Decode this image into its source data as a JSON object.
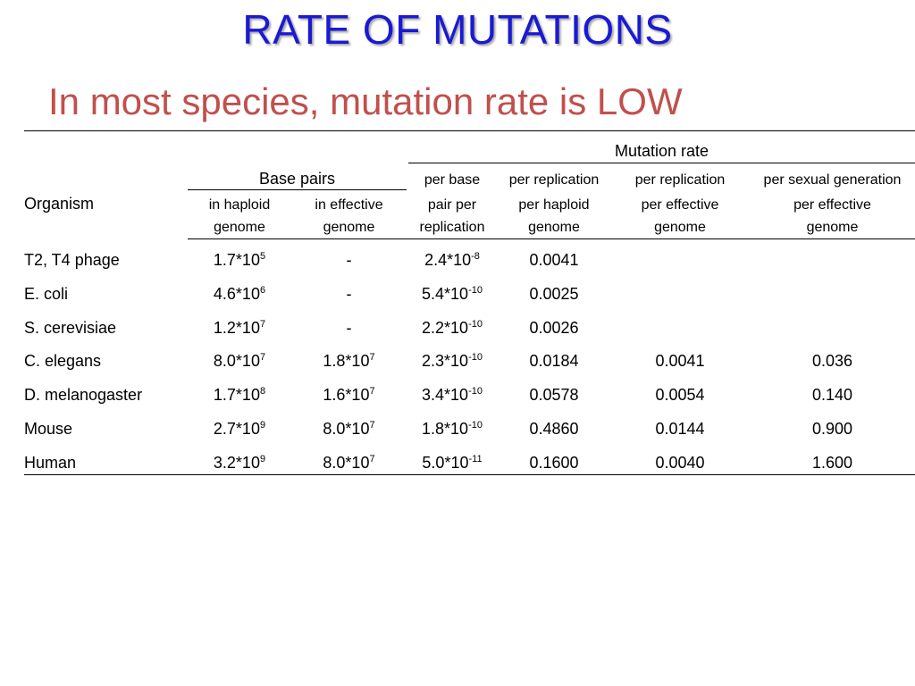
{
  "slide": {
    "title": "RATE OF MUTATIONS",
    "subtitle": "In most species, mutation rate is LOW"
  },
  "table": {
    "header": {
      "organism": "Organism",
      "base_pairs_group": "Base pairs",
      "mutation_rate_group": "Mutation rate",
      "columns": [
        {
          "line1": "in haploid",
          "line2": "genome"
        },
        {
          "line1": "in effective",
          "line2": "genome"
        },
        {
          "line0": "per base",
          "line1": "pair per",
          "line2": "replication"
        },
        {
          "line0": "per replication",
          "line1": "per haploid",
          "line2": "genome"
        },
        {
          "line0": "per replication",
          "line1": "per effective",
          "line2": "genome"
        },
        {
          "line0": "per sexual generation",
          "line1": "per effective",
          "line2": "genome"
        }
      ]
    },
    "rows": [
      {
        "organism": "T2, T4 phage",
        "haploid": {
          "base": "1.7*10",
          "exp": "5"
        },
        "effective": {
          "base": "-",
          "exp": ""
        },
        "per_bp": {
          "base": "2.4*10",
          "exp": "-8"
        },
        "per_haploid": "0.0041",
        "per_effective": "",
        "per_sexual": ""
      },
      {
        "organism": "E. coli",
        "haploid": {
          "base": "4.6*10",
          "exp": "6"
        },
        "effective": {
          "base": "-",
          "exp": ""
        },
        "per_bp": {
          "base": "5.4*10",
          "exp": "-10"
        },
        "per_haploid": "0.0025",
        "per_effective": "",
        "per_sexual": ""
      },
      {
        "organism": "S. cerevisiae",
        "haploid": {
          "base": "1.2*10",
          "exp": "7"
        },
        "effective": {
          "base": "-",
          "exp": ""
        },
        "per_bp": {
          "base": "2.2*10",
          "exp": "-10"
        },
        "per_haploid": "0.0026",
        "per_effective": "",
        "per_sexual": ""
      },
      {
        "organism": "C. elegans",
        "haploid": {
          "base": "8.0*10",
          "exp": "7"
        },
        "effective": {
          "base": "1.8*10",
          "exp": "7"
        },
        "per_bp": {
          "base": "2.3*10",
          "exp": "-10"
        },
        "per_haploid": "0.0184",
        "per_effective": "0.0041",
        "per_sexual": "0.036"
      },
      {
        "organism": "D. melanogaster",
        "haploid": {
          "base": "1.7*10",
          "exp": "8"
        },
        "effective": {
          "base": "1.6*10",
          "exp": "7"
        },
        "per_bp": {
          "base": "3.4*10",
          "exp": "-10"
        },
        "per_haploid": "0.0578",
        "per_effective": "0.0054",
        "per_sexual": "0.140"
      },
      {
        "organism": "Mouse",
        "haploid": {
          "base": "2.7*10",
          "exp": "9"
        },
        "effective": {
          "base": "8.0*10",
          "exp": "7"
        },
        "per_bp": {
          "base": "1.8*10",
          "exp": "-10"
        },
        "per_haploid": "0.4860",
        "per_effective": "0.0144",
        "per_sexual": "0.900"
      },
      {
        "organism": "Human",
        "haploid": {
          "base": "3.2*10",
          "exp": "9"
        },
        "effective": {
          "base": "8.0*10",
          "exp": "7"
        },
        "per_bp": {
          "base": "5.0*10",
          "exp": "-11"
        },
        "per_haploid": "0.1600",
        "per_effective": "0.0040",
        "per_sexual": "1.600"
      }
    ]
  },
  "colors": {
    "title": "#1a1ad2",
    "subtitle": "#c0504d",
    "text": "#000000",
    "background": "#ffffff"
  }
}
